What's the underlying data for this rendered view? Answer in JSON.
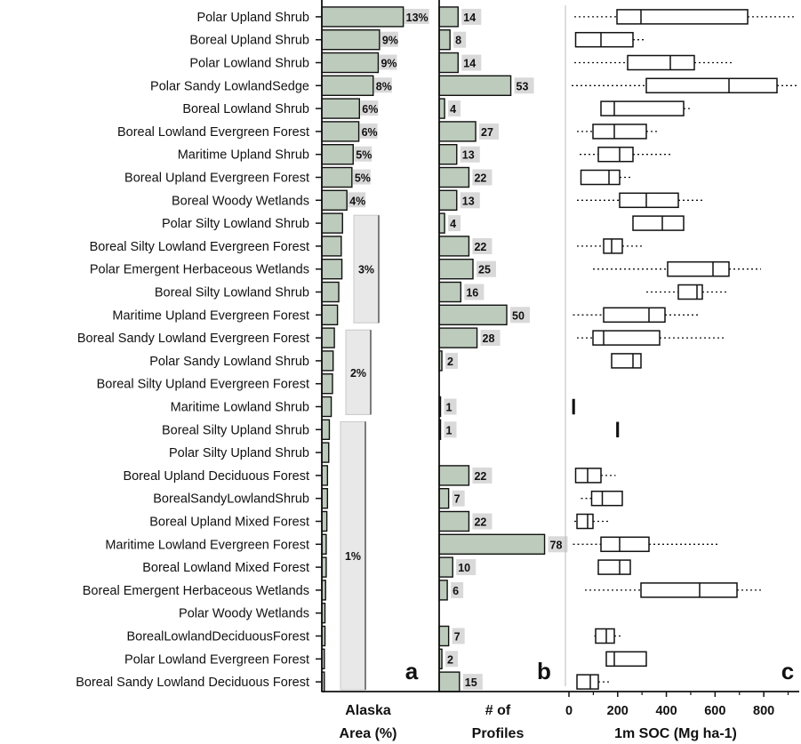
{
  "chart_data": {
    "type": "bar",
    "categories": [
      "Polar Upland Shrub",
      "Boreal Upland Shrub",
      "Polar Lowland Shrub",
      "Polar Sandy LowlandSedge",
      "Boreal Lowland Shrub",
      "Boreal Lowland Evergreen Forest",
      "Maritime Upland Shrub",
      "Boreal Upland Evergreen Forest",
      "Boreal Woody Wetlands",
      "Polar Silty Lowland Shrub",
      "Boreal Silty Lowland Evergreen Forest",
      "Polar Emergent Herbaceous Wetlands",
      "Boreal Silty Lowland Shrub",
      "Maritime Upland Evergreen Forest",
      "Boreal Sandy Lowland Evergreen Forest",
      "Polar Sandy Lowland Shrub",
      "Boreal Silty Upland Evergreen Forest",
      "Maritime Lowland Shrub",
      "Boreal Silty Upland Shrub",
      "Polar Silty Upland Shrub",
      "Boreal Upland Deciduous Forest",
      "BorealSandyLowlandShrub",
      "Boreal Upland Mixed Forest",
      "Maritime Lowland Evergreen Forest",
      "Boreal Lowland Mixed Forest",
      "Boreal Emergent Herbaceous Wetlands",
      "Polar Woody Wetlands",
      "BorealLowlandDeciduousForest",
      "Polar Lowland Evergreen Forest",
      "Boreal Sandy Lowland Deciduous Forest"
    ],
    "panels": [
      {
        "letter": "a",
        "title_lines": [
          "Alaska",
          "Area (%)"
        ],
        "values": [
          13.0,
          9.2,
          9.0,
          8.2,
          6.0,
          5.9,
          5.0,
          4.8,
          4.0,
          3.3,
          3.1,
          3.2,
          2.7,
          2.5,
          2.0,
          1.8,
          1.7,
          1.5,
          1.2,
          1.1,
          0.9,
          0.9,
          0.8,
          0.7,
          0.7,
          0.6,
          0.5,
          0.5,
          0.4,
          0.4
        ],
        "data_labels": [
          "13%",
          "9%",
          "9%",
          "8%",
          "6%",
          "6%",
          "5%",
          "5%",
          "4%",
          "",
          "",
          "",
          "",
          "",
          "",
          "",
          "",
          "",
          "",
          "",
          "",
          "",
          "",
          "",
          "",
          "",
          "",
          "",
          "",
          ""
        ],
        "group_labels": [
          {
            "label": "3%",
            "from": 9,
            "to": 13
          },
          {
            "label": "2%",
            "from": 14,
            "to": 17
          },
          {
            "label": "1%",
            "from": 18,
            "to": 29
          }
        ]
      },
      {
        "letter": "b",
        "title_lines": [
          "# of",
          "Profiles"
        ],
        "values": [
          14,
          8,
          14,
          53,
          4,
          27,
          13,
          22,
          13,
          4,
          22,
          25,
          16,
          50,
          28,
          2,
          0,
          1,
          1,
          0,
          22,
          7,
          22,
          78,
          10,
          6,
          0,
          7,
          2,
          15
        ],
        "data_labels": [
          "14",
          "8",
          "14",
          "53",
          "4",
          "27",
          "13",
          "22",
          "13",
          "4",
          "22",
          "25",
          "16",
          "50",
          "28",
          "2",
          "",
          "1",
          "1",
          "",
          "22",
          "7",
          "22",
          "78",
          "10",
          "6",
          "",
          "7",
          "2",
          "15"
        ]
      },
      {
        "letter": "c",
        "type": "box",
        "title": "1m SOC (Mg ha-1)",
        "xlim": [
          0,
          900
        ],
        "ticks": [
          "0",
          "200",
          "400",
          "600",
          "800"
        ],
        "boxes": [
          {
            "min": 20,
            "q1": 180,
            "median": 270,
            "q3": 670,
            "max": 1100
          },
          {
            "min": 25,
            "q1": 25,
            "median": 120,
            "q3": 240,
            "max": 290
          },
          {
            "min": 20,
            "q1": 220,
            "median": 380,
            "q3": 470,
            "max": 620
          },
          {
            "min": 10,
            "q1": 290,
            "median": 600,
            "q3": 780,
            "max": 1050
          },
          {
            "min": 120,
            "q1": 120,
            "median": 170,
            "q3": 430,
            "max": 460
          },
          {
            "min": 30,
            "q1": 90,
            "median": 170,
            "q3": 290,
            "max": 330
          },
          {
            "min": 40,
            "q1": 110,
            "median": 190,
            "q3": 240,
            "max": 380
          },
          {
            "min": 45,
            "q1": 45,
            "median": 150,
            "q3": 190,
            "max": 230
          },
          {
            "min": 30,
            "q1": 190,
            "median": 290,
            "q3": 410,
            "max": 510
          },
          {
            "min": 240,
            "q1": 240,
            "median": 350,
            "q3": 430,
            "max": 430
          },
          {
            "min": 30,
            "q1": 130,
            "median": 160,
            "q3": 200,
            "max": 280
          },
          {
            "min": 90,
            "q1": 370,
            "median": 540,
            "q3": 600,
            "max": 720
          },
          {
            "min": 290,
            "q1": 410,
            "median": 480,
            "q3": 500,
            "max": 590
          },
          {
            "min": 15,
            "q1": 130,
            "median": 300,
            "q3": 360,
            "max": 490
          },
          {
            "min": 30,
            "q1": 90,
            "median": 130,
            "q3": 340,
            "max": 590
          },
          {
            "min": 160,
            "q1": 160,
            "median": 240,
            "q3": 270,
            "max": 270
          },
          {},
          {
            "min": 15,
            "q1": 15,
            "median": 15,
            "q3": 20,
            "max": 20
          },
          {
            "min": 180,
            "q1": 180,
            "median": 180,
            "q3": 185,
            "max": 185
          },
          {},
          {
            "min": 25,
            "q1": 25,
            "median": 70,
            "q3": 120,
            "max": 175
          },
          {
            "min": 45,
            "q1": 85,
            "median": 125,
            "q3": 200,
            "max": 200
          },
          {
            "min": 20,
            "q1": 30,
            "median": 70,
            "q3": 90,
            "max": 150
          },
          {
            "min": 15,
            "q1": 120,
            "median": 190,
            "q3": 300,
            "max": 560
          },
          {
            "min": 110,
            "q1": 110,
            "median": 190,
            "q3": 230,
            "max": 230
          },
          {
            "min": 60,
            "q1": 270,
            "median": 490,
            "q3": 630,
            "max": 720
          },
          {},
          {
            "min": 95,
            "q1": 100,
            "median": 140,
            "q3": 170,
            "max": 200
          },
          {
            "min": 140,
            "q1": 140,
            "median": 170,
            "q3": 290,
            "max": 290
          },
          {
            "min": 30,
            "q1": 30,
            "median": 80,
            "q3": 110,
            "max": 150
          }
        ]
      }
    ],
    "colors": {
      "bar_fill": "#bccbbb",
      "bar_stroke": "#111111",
      "label_box": "#d9d9d9",
      "group_box": "#e8e8e8"
    }
  }
}
